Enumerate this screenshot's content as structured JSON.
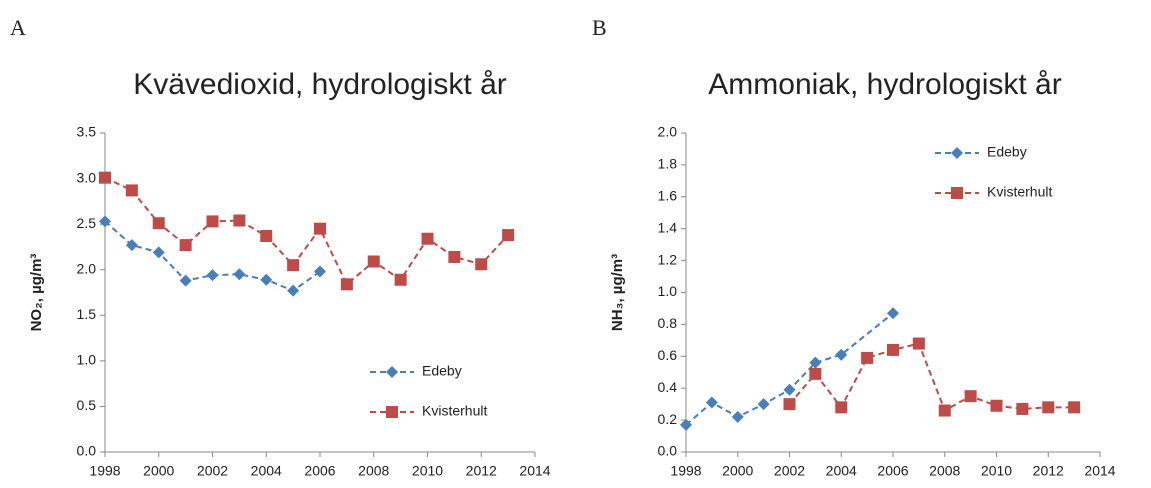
{
  "chart_data": [
    {
      "type": "line",
      "panel": "A",
      "title": "Kvävedioxid, hydrologiskt år",
      "ylabel": "NO₂, µg/m³",
      "xlim": [
        1998,
        2014
      ],
      "xticks": [
        1998,
        2000,
        2002,
        2004,
        2006,
        2008,
        2010,
        2012,
        2014
      ],
      "ylim": [
        0,
        3.5
      ],
      "yticks": [
        {
          "value": 0,
          "label": "0.0"
        },
        0.5,
        {
          "value": 1,
          "label": "1.0"
        },
        1.5,
        {
          "value": 2,
          "label": "2.0"
        },
        2.5,
        {
          "value": 3,
          "label": "3.0"
        },
        3.5
      ],
      "legend": "lower right",
      "series": [
        {
          "name": "Edeby",
          "color": "#4a7ebb",
          "marker": "diamond",
          "x": [
            1998,
            1999,
            2000,
            2001,
            2002,
            2003,
            2004,
            2005,
            2006
          ],
          "values": [
            2.53,
            2.27,
            2.19,
            1.88,
            1.94,
            1.95,
            1.89,
            1.77,
            1.98
          ]
        },
        {
          "name": "Kvisterhult",
          "color": "#be4b48",
          "marker": "square",
          "x": [
            1998,
            1999,
            2000,
            2001,
            2002,
            2003,
            2004,
            2005,
            2006,
            2007,
            2008,
            2009,
            2010,
            2011,
            2012,
            2013
          ],
          "values": [
            3.01,
            2.87,
            2.51,
            2.27,
            2.53,
            2.54,
            2.37,
            2.05,
            2.45,
            1.84,
            2.09,
            1.89,
            2.34,
            2.14,
            2.06,
            2.38
          ]
        }
      ]
    },
    {
      "type": "line",
      "panel": "B",
      "title": "Ammoniak, hydrologiskt år",
      "ylabel": "NH₃, µg/m³",
      "xlim": [
        1998,
        2014
      ],
      "xticks": [
        1998,
        2000,
        2002,
        2004,
        2006,
        2008,
        2010,
        2012,
        2014
      ],
      "ylim": [
        0,
        2
      ],
      "yticks": [
        {
          "value": 0,
          "label": "0.0"
        },
        0.2,
        0.4,
        0.6,
        0.8,
        {
          "value": 1,
          "label": "1.0"
        },
        1.2,
        1.4,
        1.6,
        1.8,
        {
          "value": 2,
          "label": "2.0"
        }
      ],
      "legend": "upper right",
      "series": [
        {
          "name": "Edeby",
          "color": "#4a7ebb",
          "marker": "diamond",
          "x": [
            1998,
            1999,
            2000,
            2001,
            2002,
            2003,
            2004,
            2006
          ],
          "values": [
            0.17,
            0.31,
            0.22,
            0.3,
            0.39,
            0.56,
            0.61,
            0.87
          ]
        },
        {
          "name": "Kvisterhult",
          "color": "#be4b48",
          "marker": "square",
          "x": [
            2002,
            2003,
            2004,
            2005,
            2006,
            2007,
            2008,
            2009,
            2010,
            2011,
            2012,
            2013
          ],
          "values": [
            0.3,
            0.49,
            0.28,
            0.59,
            0.64,
            0.68,
            0.26,
            0.35,
            0.29,
            0.27,
            0.28,
            0.28
          ]
        }
      ]
    }
  ]
}
